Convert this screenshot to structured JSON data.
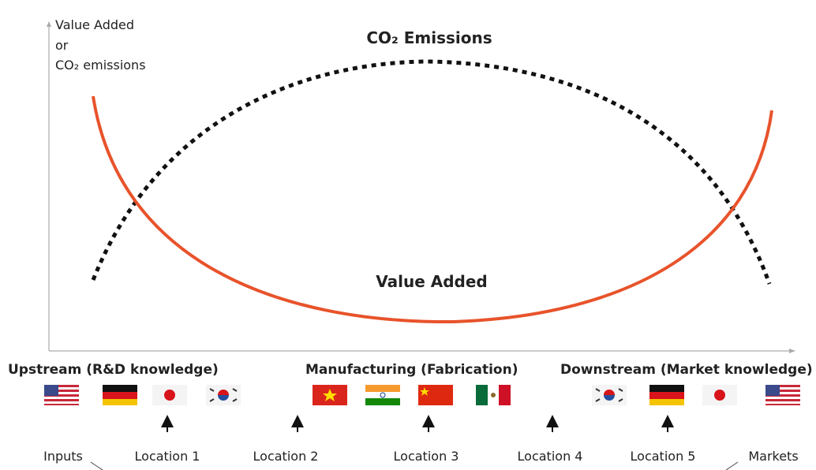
{
  "axis": {
    "y_label_lines": [
      "Value Added",
      "or",
      "CO₂ emissions"
    ]
  },
  "curves": {
    "emissions": "CO₂ Emissions",
    "value_added": "Value Added"
  },
  "stages": [
    "Upstream (R&D knowledge)",
    "Manufacturing (Fabrication)",
    "Downstream (Market knowledge)"
  ],
  "locations": [
    "Inputs",
    "Location 1",
    "Location 2",
    "Location 3",
    "Location 4",
    "Location 5",
    "Markets"
  ]
}
